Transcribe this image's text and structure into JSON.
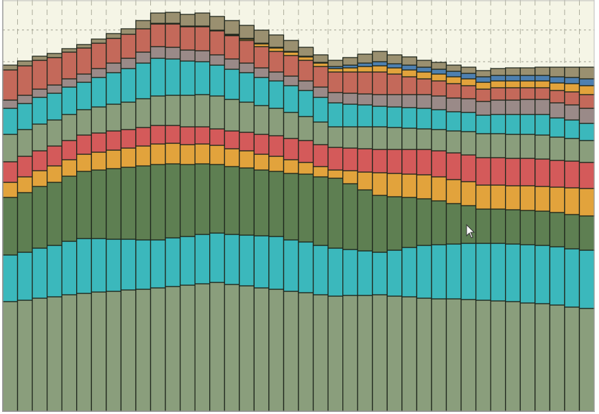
{
  "chart_data": {
    "type": "bar",
    "stacked": true,
    "title": "",
    "xlabel": "",
    "ylabel": "",
    "ylim": [
      0,
      60
    ],
    "grid": true,
    "legend": "right (cropped)",
    "background_color": "#f5f5e6",
    "bar_count": 40,
    "series": [
      {
        "color": "#8a9e7c",
        "values": [
          16.0,
          16.2,
          16.5,
          16.7,
          17.0,
          17.2,
          17.4,
          17.5,
          17.7,
          17.8,
          18.0,
          18.2,
          18.4,
          18.6,
          18.8,
          18.5,
          18.3,
          18.0,
          17.8,
          17.5,
          17.3,
          17.0,
          16.8,
          16.9,
          16.9,
          17.0,
          16.8,
          16.7,
          16.5,
          16.4,
          16.4,
          16.3,
          16.2,
          16.1,
          16.0,
          15.8,
          15.7,
          15.5,
          15.2,
          15.0
        ]
      },
      {
        "color": "#3bb8bc",
        "values": [
          6.8,
          7.0,
          7.3,
          7.5,
          7.8,
          8.0,
          7.8,
          7.6,
          7.4,
          7.2,
          7.0,
          7.1,
          7.1,
          7.2,
          7.2,
          7.3,
          7.4,
          7.6,
          7.7,
          7.5,
          7.4,
          7.2,
          7.0,
          6.7,
          6.5,
          6.2,
          6.7,
          7.2,
          7.7,
          7.9,
          8.0,
          8.2,
          8.3,
          8.4,
          8.4,
          8.5,
          8.5,
          8.5,
          8.5,
          8.5
        ]
      },
      {
        "color": "#5e7f52",
        "values": [
          8.4,
          8.7,
          9.0,
          9.2,
          9.5,
          9.8,
          10.0,
          10.3,
          10.5,
          10.8,
          11.0,
          10.8,
          10.5,
          10.3,
          10.0,
          9.9,
          9.8,
          9.6,
          9.5,
          9.7,
          9.9,
          10.0,
          10.2,
          9.6,
          8.9,
          8.3,
          7.8,
          7.3,
          6.8,
          6.4,
          5.9,
          5.5,
          5.0,
          5.0,
          5.0,
          5.0,
          5.0,
          5.0,
          5.0,
          5.0
        ]
      },
      {
        "color": "#e2a33c",
        "values": [
          2.2,
          2.3,
          2.3,
          2.4,
          2.4,
          2.5,
          2.6,
          2.7,
          2.8,
          2.9,
          3.0,
          3.0,
          2.9,
          2.9,
          2.8,
          2.6,
          2.5,
          2.3,
          2.2,
          2.0,
          1.7,
          1.5,
          1.2,
          1.9,
          2.6,
          3.3,
          3.4,
          3.4,
          3.5,
          3.5,
          3.5,
          3.5,
          3.5,
          3.5,
          3.5,
          3.6,
          3.6,
          3.7,
          3.9,
          4.0
        ]
      },
      {
        "color": "#d45a5a",
        "values": [
          3.0,
          3.0,
          2.9,
          2.9,
          2.8,
          2.8,
          2.8,
          2.8,
          2.7,
          2.7,
          2.7,
          2.6,
          2.6,
          2.5,
          2.4,
          2.6,
          2.7,
          2.9,
          3.0,
          3.1,
          3.2,
          3.2,
          3.3,
          3.3,
          3.4,
          3.4,
          3.5,
          3.6,
          3.7,
          3.8,
          3.9,
          3.9,
          4.0,
          4.0,
          4.0,
          4.0,
          4.0,
          3.9,
          3.9,
          3.8
        ]
      },
      {
        "color": "#8a9e7c",
        "values": [
          4.0,
          3.9,
          3.9,
          3.8,
          3.8,
          3.7,
          3.8,
          3.9,
          4.0,
          4.2,
          4.3,
          4.4,
          4.6,
          4.7,
          4.8,
          4.6,
          4.4,
          4.2,
          4.0,
          3.8,
          3.5,
          3.3,
          3.0,
          3.1,
          3.2,
          3.3,
          3.2,
          3.1,
          3.0,
          3.1,
          3.2,
          3.4,
          3.5,
          3.5,
          3.5,
          3.5,
          3.5,
          3.4,
          3.3,
          3.2
        ]
      },
      {
        "color": "#3bb8bc",
        "values": [
          3.8,
          3.8,
          3.9,
          3.9,
          4.0,
          4.0,
          4.3,
          4.6,
          4.9,
          5.2,
          5.5,
          5.3,
          5.0,
          4.8,
          4.5,
          4.4,
          4.3,
          4.1,
          4.0,
          3.9,
          3.8,
          3.6,
          3.5,
          3.3,
          3.2,
          3.0,
          3.0,
          3.0,
          3.0,
          2.9,
          2.8,
          2.8,
          2.7,
          2.8,
          2.9,
          2.9,
          3.0,
          2.8,
          2.7,
          2.5
        ]
      },
      {
        "color": "#9a8a88",
        "values": [
          1.2,
          1.2,
          1.2,
          1.2,
          1.2,
          1.2,
          1.3,
          1.4,
          1.5,
          1.6,
          1.7,
          1.7,
          1.6,
          1.6,
          1.5,
          1.5,
          1.4,
          1.4,
          1.3,
          1.4,
          1.4,
          1.5,
          1.5,
          1.6,
          1.6,
          1.7,
          1.8,
          1.9,
          2.0,
          2.0,
          2.0,
          2.0,
          2.0,
          2.1,
          2.1,
          2.2,
          2.2,
          2.2,
          2.2,
          2.2
        ]
      },
      {
        "color": "#c4695a",
        "values": [
          4.4,
          4.3,
          4.2,
          4.0,
          3.9,
          3.8,
          3.7,
          3.6,
          3.5,
          3.4,
          3.3,
          3.4,
          3.4,
          3.5,
          3.5,
          3.4,
          3.3,
          3.1,
          3.0,
          3.0,
          3.0,
          3.0,
          3.0,
          3.1,
          3.2,
          3.3,
          3.0,
          2.6,
          2.3,
          2.2,
          2.1,
          1.9,
          1.8,
          1.8,
          1.8,
          1.7,
          1.7,
          1.8,
          1.9,
          2.0
        ]
      },
      {
        "color": "#e2a33c",
        "values": [
          0,
          0,
          0,
          0,
          0,
          0,
          0,
          0,
          0,
          0,
          0,
          0,
          0,
          0,
          0,
          0.1,
          0.2,
          0.4,
          0.5,
          0.5,
          0.5,
          0.5,
          0.5,
          0.6,
          0.8,
          0.9,
          0.9,
          1.0,
          1.0,
          1.0,
          1.0,
          1.0,
          1.0,
          1.0,
          1.0,
          1.0,
          1.0,
          1.1,
          1.2,
          1.3
        ]
      },
      {
        "color": "#4e80b0",
        "values": [
          0,
          0,
          0,
          0,
          0,
          0,
          0,
          0,
          0,
          0,
          0.1,
          0.1,
          0.1,
          0.1,
          0.1,
          0.1,
          0.1,
          0.1,
          0.1,
          0.1,
          0.1,
          0.1,
          0.3,
          0.4,
          0.5,
          0.6,
          0.6,
          0.7,
          0.7,
          0.7,
          0.8,
          0.8,
          0.8,
          0.8,
          0.8,
          0.8,
          0.8,
          0.9,
          0.9,
          1.0
        ]
      },
      {
        "color": "#9a9070",
        "values": [
          0.7,
          0.7,
          0.6,
          0.6,
          0.5,
          0.5,
          0.6,
          0.7,
          0.8,
          1.2,
          1.5,
          1.6,
          1.7,
          1.9,
          2.0,
          2.0,
          1.9,
          1.9,
          1.8,
          1.6,
          1.3,
          1.1,
          0.9,
          1.1,
          1.3,
          1.5,
          1.3,
          1.2,
          1.0,
          1.0,
          0.9,
          0.9,
          0.9,
          1.0,
          1.1,
          1.1,
          1.2,
          1.4,
          1.5,
          1.7
        ]
      }
    ]
  }
}
